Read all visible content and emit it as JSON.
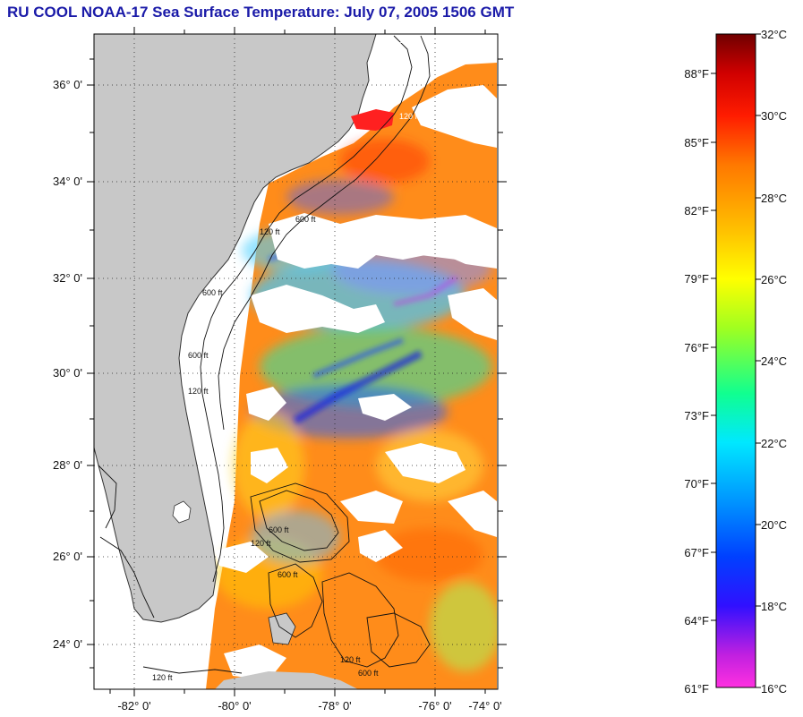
{
  "title": "RU COOL  NOAA-17  Sea Surface Temperature:  July 07, 2005 1506 GMT",
  "map": {
    "lat_labels": [
      "36° 0'",
      "34° 0'",
      "32° 0'",
      "30° 0'",
      "28° 0'",
      "26° 0'",
      "24° 0'"
    ],
    "lon_labels": [
      "-82° 0'",
      "-80° 0'",
      "-78° 0'",
      "-76° 0'",
      "-74° 0'"
    ],
    "contour_labels": [
      "120 ft",
      "120 ft",
      "600 ft",
      "120 ft",
      "600 ft",
      "120 ft",
      "600 ft",
      "600 ft",
      "120 ft",
      "600 ft",
      "120 ft",
      "600 ft",
      "120 ft"
    ],
    "colors": {
      "land": "#c8c8c8",
      "cloud": "#ffffff",
      "sst_dominant": "#ff8c1a"
    }
  },
  "colorbar": {
    "celsius_labels": [
      "32°C",
      "30°C",
      "28°C",
      "26°C",
      "24°C",
      "22°C",
      "20°C",
      "18°C",
      "16°C"
    ],
    "fahrenheit_labels": [
      "88°F",
      "85°F",
      "82°F",
      "79°F",
      "76°F",
      "73°F",
      "70°F",
      "67°F",
      "64°F",
      "61°F"
    ],
    "range_celsius": [
      16,
      32
    ]
  }
}
